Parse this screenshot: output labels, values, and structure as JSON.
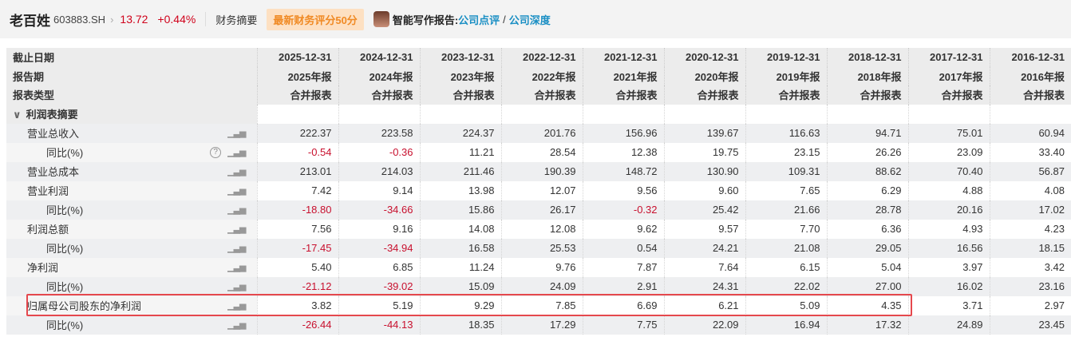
{
  "header": {
    "stock_name": "老百姓",
    "stock_code": "603883.SH",
    "price": "13.72",
    "change": "+0.44%",
    "tab": "财务摘要",
    "rating_badge": "最新财务评分50分",
    "ai_label": "智能写作报告:",
    "link1": "公司点评",
    "slash": "/",
    "link2": "公司深度"
  },
  "table": {
    "header_rows": [
      {
        "label": "截止日期",
        "values": [
          "2025-12-31",
          "2024-12-31",
          "2023-12-31",
          "2022-12-31",
          "2021-12-31",
          "2020-12-31",
          "2019-12-31",
          "2018-12-31",
          "2017-12-31",
          "2016-12-31"
        ]
      },
      {
        "label": "报告期",
        "values": [
          "2025年报",
          "2024年报",
          "2023年报",
          "2022年报",
          "2021年报",
          "2020年报",
          "2019年报",
          "2018年报",
          "2017年报",
          "2016年报"
        ]
      },
      {
        "label": "报表类型",
        "values": [
          "合并报表",
          "合并报表",
          "合并报表",
          "合并报表",
          "合并报表",
          "合并报表",
          "合并报表",
          "合并报表",
          "合并报表",
          "合并报表"
        ]
      }
    ],
    "section": {
      "label": "利润表摘要",
      "icon": "chevron-down-icon"
    },
    "rows": [
      {
        "label": "营业总收入",
        "level": 1,
        "values": [
          "222.37",
          "223.58",
          "224.37",
          "201.76",
          "156.96",
          "139.67",
          "116.63",
          "94.71",
          "75.01",
          "60.94"
        ]
      },
      {
        "label": "同比(%)",
        "level": 2,
        "help": true,
        "values": [
          "-0.54",
          "-0.36",
          "11.21",
          "28.54",
          "12.38",
          "19.75",
          "23.15",
          "26.26",
          "23.09",
          "33.40"
        ]
      },
      {
        "label": "营业总成本",
        "level": 1,
        "values": [
          "213.01",
          "214.03",
          "211.46",
          "190.39",
          "148.72",
          "130.90",
          "109.31",
          "88.62",
          "70.40",
          "56.87"
        ]
      },
      {
        "label": "营业利润",
        "level": 1,
        "values": [
          "7.42",
          "9.14",
          "13.98",
          "12.07",
          "9.56",
          "9.60",
          "7.65",
          "6.29",
          "4.88",
          "4.08"
        ]
      },
      {
        "label": "同比(%)",
        "level": 2,
        "values": [
          "-18.80",
          "-34.66",
          "15.86",
          "26.17",
          "-0.32",
          "25.42",
          "21.66",
          "28.78",
          "20.16",
          "17.02"
        ]
      },
      {
        "label": "利润总额",
        "level": 1,
        "values": [
          "7.56",
          "9.16",
          "14.08",
          "12.08",
          "9.62",
          "9.57",
          "7.70",
          "6.36",
          "4.93",
          "4.23"
        ]
      },
      {
        "label": "同比(%)",
        "level": 2,
        "values": [
          "-17.45",
          "-34.94",
          "16.58",
          "25.53",
          "0.54",
          "24.21",
          "21.08",
          "29.05",
          "16.56",
          "18.15"
        ]
      },
      {
        "label": "净利润",
        "level": 1,
        "values": [
          "5.40",
          "6.85",
          "11.24",
          "9.76",
          "7.87",
          "7.64",
          "6.15",
          "5.04",
          "3.97",
          "3.42"
        ]
      },
      {
        "label": "同比(%)",
        "level": 2,
        "values": [
          "-21.12",
          "-39.02",
          "15.09",
          "24.09",
          "2.91",
          "24.31",
          "22.02",
          "27.00",
          "16.02",
          "23.16"
        ]
      },
      {
        "label": "归属母公司股东的净利润",
        "level": 1,
        "highlighted": true,
        "values": [
          "3.82",
          "5.19",
          "9.29",
          "7.85",
          "6.69",
          "6.21",
          "5.09",
          "4.35",
          "3.71",
          "2.97"
        ]
      },
      {
        "label": "同比(%)",
        "level": 2,
        "values": [
          "-26.44",
          "-44.13",
          "18.35",
          "17.29",
          "7.75",
          "22.09",
          "16.94",
          "17.32",
          "24.89",
          "23.45"
        ]
      }
    ]
  },
  "colors": {
    "negative": "#c8102e",
    "link": "#1a8fc4",
    "highlight_border": "#e5484d",
    "badge_bg": "#fde0c2",
    "badge_text": "#f08a24"
  }
}
